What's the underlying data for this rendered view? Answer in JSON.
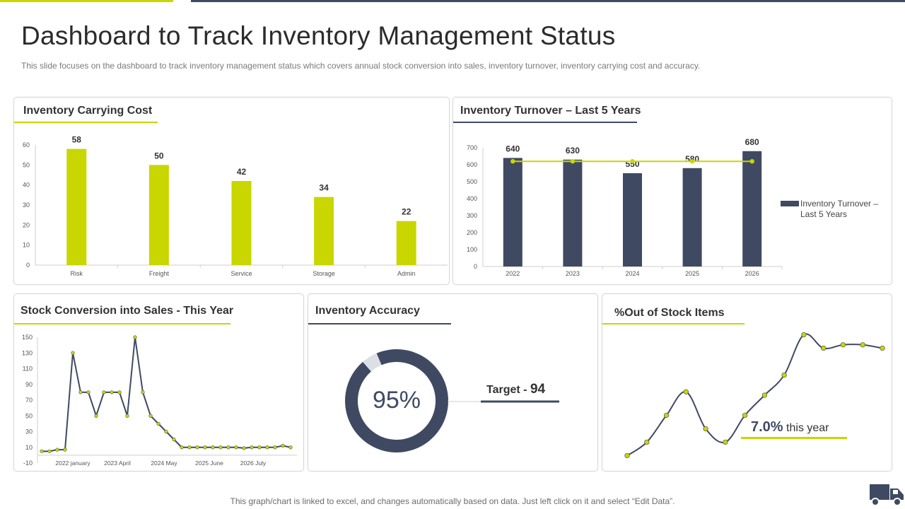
{
  "page": {
    "title": "Dashboard to Track Inventory Management Status",
    "subtitle": "This slide focuses on the dashboard to track inventory management status which covers annual stock conversion into sales, inventory turnover, inventory carrying cost and accuracy.",
    "footer": "This graph/chart is linked to excel,  and changes automatically based on data. Just left click on it and select “Edit Data”.",
    "icon": "truck-icon"
  },
  "colors": {
    "accent": "#c9d600",
    "navy": "#3f4a62",
    "light": "#dcdfe6"
  },
  "cards": {
    "carrying_cost": {
      "title": "Inventory Carrying Cost"
    },
    "turnover": {
      "title": "Inventory Turnover – Last 5 Years",
      "legend_line1": "Inventory  Turnover  –",
      "legend_line2": "Last 5 Years"
    },
    "stock_conversion": {
      "title": "Stock Conversion into Sales - This Year"
    },
    "accuracy": {
      "title": "Inventory Accuracy",
      "center_value": "95%",
      "target_label": "Target - ",
      "target_value": "94"
    },
    "out_of_stock": {
      "title": "%Out of Stock Items",
      "value": "7.0%",
      "value_suffix": " this year"
    }
  },
  "chart_data": [
    {
      "type": "bar",
      "title": "Inventory Carrying Cost",
      "categories": [
        "Risk",
        "Freight",
        "Service",
        "Storage",
        "Admin"
      ],
      "values": [
        58,
        50,
        42,
        34,
        22
      ],
      "ylim": [
        0,
        60
      ],
      "yticks": [
        0,
        10,
        20,
        30,
        40,
        50,
        60
      ],
      "color": "#c9d600"
    },
    {
      "type": "bar",
      "title": "Inventory Turnover – Last 5 Years",
      "categories": [
        "2022",
        "2023",
        "2024",
        "2025",
        "2026"
      ],
      "series": [
        {
          "name": "Inventory  Turnover  – Last 5 Years",
          "values": [
            640,
            630,
            550,
            580,
            680
          ]
        }
      ],
      "target_line": [
        620,
        620,
        620,
        620,
        620
      ],
      "ylim": [
        0,
        700
      ],
      "yticks": [
        0,
        100,
        200,
        300,
        400,
        500,
        600,
        700
      ],
      "legend": "right",
      "colors": {
        "bars": "#3f4a62",
        "line": "#c9d600"
      }
    },
    {
      "type": "line",
      "title": "Stock Conversion into Sales - This Year",
      "values": [
        5,
        5,
        7,
        7,
        130,
        80,
        80,
        50,
        80,
        80,
        80,
        50,
        150,
        80,
        50,
        40,
        30,
        20,
        10,
        10,
        10,
        10,
        10,
        10,
        10,
        10,
        9,
        10,
        10,
        10,
        10,
        12,
        10
      ],
      "xlabels": [
        "2022 january",
        "2023 April",
        "2024 May",
        "2025 June",
        "2026 July"
      ],
      "ylim": [
        -10,
        150
      ],
      "yticks": [
        -10,
        10,
        30,
        50,
        70,
        90,
        110,
        130,
        150
      ]
    },
    {
      "type": "pie",
      "title": "Inventory Accuracy",
      "values": [
        95,
        5
      ]
    },
    {
      "type": "line",
      "title": "%Out of Stock Items",
      "values": [
        1,
        3,
        7,
        10.5,
        5,
        3,
        7,
        10,
        13,
        19,
        17,
        17.5,
        17.5,
        17
      ]
    }
  ]
}
